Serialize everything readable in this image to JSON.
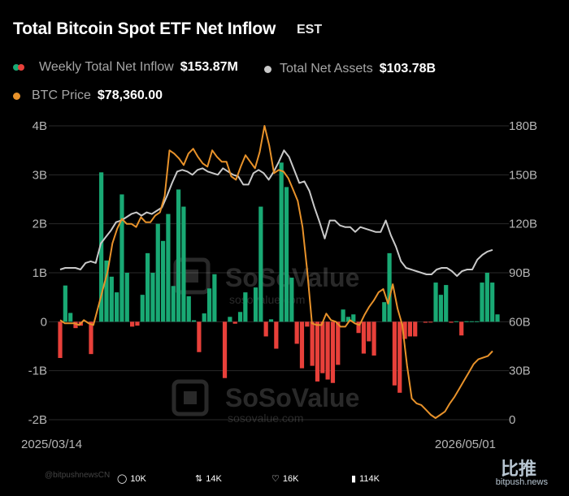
{
  "title": "Total Bitcoin Spot ETF Net Inflow",
  "timezone": "EST",
  "legend": {
    "weekly": {
      "label": "Weekly Total Net Inflow",
      "value": "$153.87M"
    },
    "assets": {
      "label": "Total Net Assets",
      "value": "$103.78B"
    },
    "price": {
      "label": "BTC Price",
      "value": "$78,360.00"
    }
  },
  "colors": {
    "positive": "#19a974",
    "negative": "#e8403a",
    "assets_line": "#c9c9c9",
    "price_line": "#e8922a",
    "grid": "#2a2a2a",
    "axis_text": "#b5b5b5"
  },
  "watermark": {
    "brand": "SoSoValue",
    "url": "sosovalue.com"
  },
  "footer": {
    "handle": "@bitpushnewsCN",
    "reply_count": "10K",
    "repost_count": "14K",
    "like_count": "16K",
    "view_count": "114K",
    "site_logo": "比推",
    "site_url": "bitpush.news"
  },
  "chart_data": {
    "type": "bar",
    "x_start_label": "2025/03/14",
    "x_end_label": "2026/05/01",
    "left_axis": {
      "ticks": [
        "4B",
        "3B",
        "2B",
        "1B",
        "0",
        "-1B",
        "-2B"
      ],
      "range": [
        -2,
        4
      ],
      "unit": "B"
    },
    "right_axis": {
      "ticks": [
        "180B",
        "150B",
        "120B",
        "90B",
        "60B",
        "30B",
        "0"
      ],
      "range": [
        0,
        180
      ],
      "unit": "B"
    },
    "series": [
      {
        "name": "Weekly Total Net Inflow",
        "values": [
          -0.74,
          0.74,
          0.18,
          -0.13,
          -0.08,
          0,
          -0.66,
          0,
          3.05,
          1.25,
          0.92,
          0.6,
          2.6,
          1.0,
          -0.1,
          -0.08,
          0.55,
          1.4,
          1.0,
          2.0,
          1.65,
          2.2,
          0.73,
          2.7,
          2.35,
          0.52,
          0.03,
          -0.62,
          0.17,
          0.68,
          0.97,
          0.0,
          -1.15,
          0.1,
          -0.04,
          0.2,
          0.6,
          0,
          0.7,
          2.35,
          -0.3,
          0.05,
          -0.55,
          3.25,
          2.75,
          0.9,
          -0.45,
          -0.95,
          -0.1,
          -0.9,
          -1.22,
          -1.05,
          -1.18,
          -1.25,
          -0.88,
          0.25,
          0.1,
          0.15,
          -0.23,
          -0.65,
          -0.4,
          -0.69,
          0.0,
          0.4,
          1.4,
          -1.3,
          -1.45,
          -0.35,
          -0.3,
          -0.3,
          0,
          -0.02,
          -0.01,
          0.8,
          0.55,
          0.75,
          -0.02,
          0.01,
          -0.28,
          0.01,
          0.01,
          0.01,
          0.8,
          1.0,
          0.8,
          0.15
        ]
      },
      {
        "name": "Total Net Assets",
        "values": [
          92,
          93,
          93,
          93,
          92,
          96,
          97,
          96,
          108,
          112,
          116,
          121,
          122,
          124,
          126,
          127,
          125,
          127,
          126,
          128,
          130,
          137,
          145,
          152,
          153,
          152,
          150,
          153,
          154,
          152,
          151,
          150,
          154,
          152,
          150,
          149,
          144,
          144,
          151,
          153,
          151,
          147,
          152,
          158,
          165,
          161,
          153,
          145,
          146,
          140,
          130,
          121,
          111,
          122,
          122,
          119,
          118,
          118,
          115,
          118,
          117,
          116,
          115,
          115,
          122,
          113,
          106,
          97,
          93,
          92,
          91,
          90,
          89,
          89,
          92,
          93,
          93,
          91,
          88,
          91,
          92,
          92,
          98,
          101,
          103,
          104
        ]
      },
      {
        "name": "BTC Price",
        "values": [
          61,
          59,
          59,
          59,
          58,
          61,
          59,
          58,
          69,
          80,
          91,
          108,
          117,
          123,
          120,
          120,
          118,
          124,
          121,
          121,
          125,
          127,
          137,
          165,
          163,
          160,
          156,
          163,
          166,
          161,
          157,
          155,
          165,
          161,
          158,
          158,
          149,
          147,
          155,
          162,
          158,
          154,
          164,
          180,
          168,
          151,
          153,
          152,
          148,
          141,
          134,
          118,
          91,
          59,
          58,
          58,
          65,
          61,
          60,
          57,
          57,
          61,
          59,
          58,
          64,
          69,
          73,
          78,
          80,
          71,
          83,
          68,
          58,
          33,
          13,
          10,
          9,
          6,
          3,
          1,
          3,
          5,
          10,
          14,
          19,
          24,
          29,
          34,
          37,
          38,
          39,
          42
        ]
      }
    ]
  }
}
